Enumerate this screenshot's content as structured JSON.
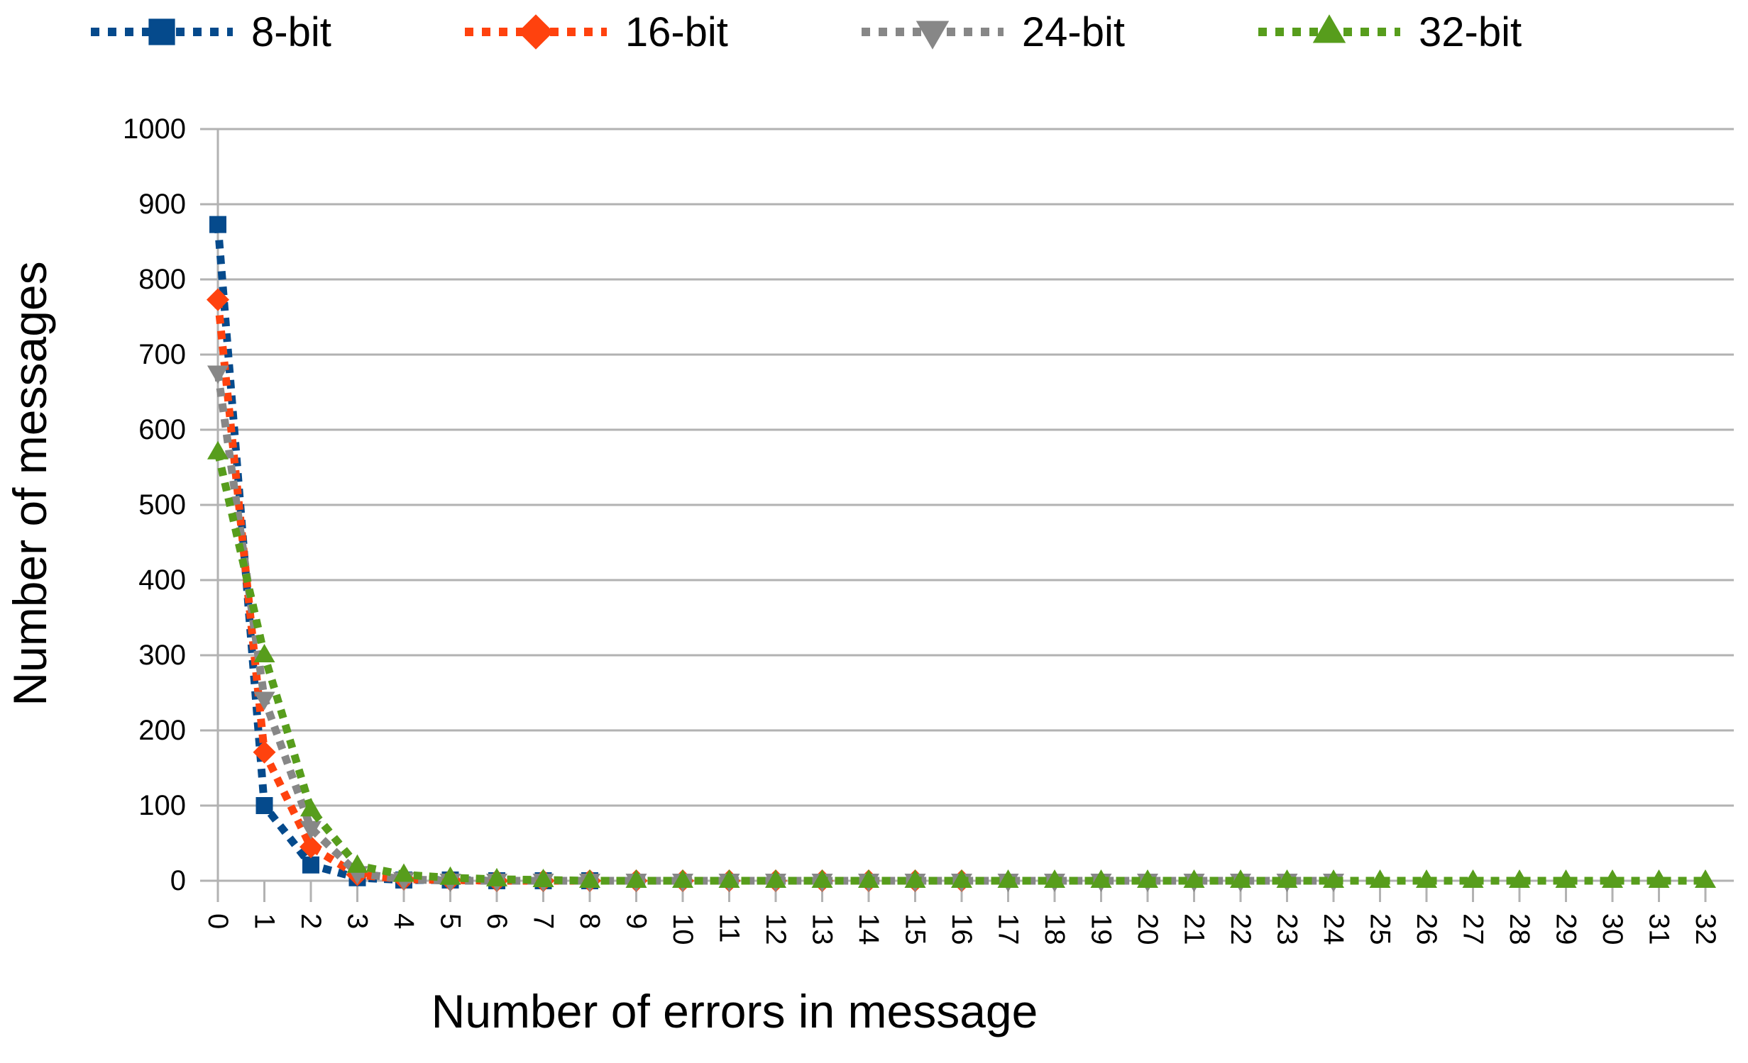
{
  "chart_data": {
    "type": "line",
    "title": "",
    "xlabel": "Number of errors in message",
    "ylabel": "Number of messages",
    "x_categories": [
      "0",
      "1",
      "2",
      "3",
      "4",
      "5",
      "6",
      "7",
      "8",
      "9",
      "10",
      "11",
      "12",
      "13",
      "14",
      "15",
      "16",
      "17",
      "18",
      "19",
      "20",
      "21",
      "22",
      "23",
      "24",
      "25",
      "26",
      "27",
      "28",
      "29",
      "30",
      "31",
      "32"
    ],
    "y_ticks": [
      0,
      100,
      200,
      300,
      400,
      500,
      600,
      700,
      800,
      900,
      1000
    ],
    "ylim": [
      0,
      1000
    ],
    "grid": "horizontal-only",
    "legend_position": "top",
    "line_style": "dotted",
    "axis_color": "#b2b2b2",
    "text_color": "#000000",
    "series": [
      {
        "name": "8-bit",
        "color": "#054a8c",
        "marker": "square",
        "values": [
          873,
          100,
          21,
          4,
          1,
          1,
          0,
          0,
          0
        ]
      },
      {
        "name": "16-bit",
        "color": "#ff420e",
        "marker": "diamond",
        "values": [
          773,
          171,
          45,
          8,
          2,
          1,
          0,
          0,
          0,
          0,
          0,
          0,
          0,
          0,
          0,
          0,
          0
        ]
      },
      {
        "name": "24-bit",
        "color": "#878787",
        "marker": "triangle-down",
        "values": [
          676,
          242,
          70,
          10,
          2,
          0,
          0,
          0,
          0,
          0,
          0,
          0,
          0,
          0,
          0,
          0,
          0,
          0,
          0,
          0,
          0,
          0,
          0,
          0,
          0
        ]
      },
      {
        "name": "32-bit",
        "color": "#579d1c",
        "marker": "triangle-up",
        "values": [
          570,
          300,
          95,
          20,
          8,
          4,
          2,
          1,
          0,
          0,
          0,
          0,
          0,
          0,
          0,
          0,
          0,
          0,
          0,
          0,
          0,
          0,
          0,
          0,
          0,
          0,
          0,
          0,
          0,
          0,
          0,
          0,
          0
        ]
      }
    ]
  }
}
